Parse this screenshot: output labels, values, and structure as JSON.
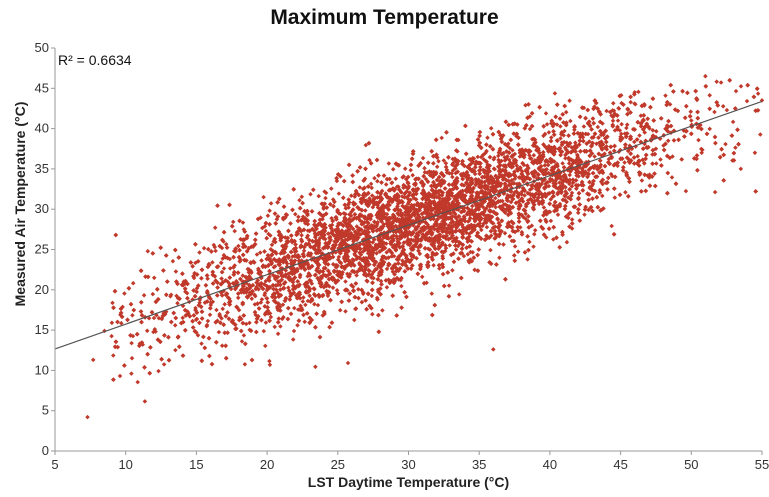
{
  "chart_data": {
    "type": "scatter",
    "title": "Maximum Temperature",
    "xlabel": "LST Daytime Temperature (°C)",
    "ylabel": "Measured Air Temperature (°C)",
    "xlim": [
      5,
      55
    ],
    "ylim": [
      0,
      50
    ],
    "xticks": [
      "5",
      "10",
      "15",
      "20",
      "25",
      "30",
      "35",
      "40",
      "45",
      "50",
      "55"
    ],
    "yticks": [
      "0",
      "5",
      "10",
      "15",
      "20",
      "25",
      "30",
      "35",
      "40",
      "45",
      "50"
    ],
    "grid": false,
    "annotation": "R² = 0.6634",
    "trendline": {
      "slope": 0.614,
      "intercept": 9.6,
      "color": "#555555"
    },
    "marker_color": "#c0392b",
    "points_sample": [
      [
        7.3,
        4.2
      ],
      [
        7.7,
        11.3
      ],
      [
        8.5,
        14.9
      ],
      [
        9.6,
        9.3
      ],
      [
        10.4,
        9.6
      ],
      [
        11.2,
        13.2
      ],
      [
        12.0,
        16.5
      ],
      [
        13.5,
        15.6
      ],
      [
        14.5,
        18.5
      ],
      [
        15.8,
        19.6
      ],
      [
        17.0,
        18.2
      ],
      [
        18.5,
        21.6
      ],
      [
        20.2,
        22.0
      ],
      [
        20.2,
        10.7
      ],
      [
        22.0,
        25.1
      ],
      [
        24.0,
        27.1
      ],
      [
        25.5,
        28.8
      ],
      [
        26.5,
        24.0
      ],
      [
        28.0,
        29.5
      ],
      [
        30.0,
        27.0
      ],
      [
        30.5,
        33.2
      ],
      [
        32.0,
        31.5
      ],
      [
        33.5,
        30.2
      ],
      [
        35.0,
        34.8
      ],
      [
        36.0,
        12.6
      ],
      [
        36.5,
        31.0
      ],
      [
        38.0,
        37.0
      ],
      [
        39.5,
        33.5
      ],
      [
        40.5,
        40.5
      ],
      [
        42.0,
        36.0
      ],
      [
        43.5,
        42.0
      ],
      [
        45.0,
        39.0
      ],
      [
        46.0,
        44.5
      ],
      [
        47.5,
        37.5
      ],
      [
        48.5,
        43.0
      ],
      [
        50.0,
        41.0
      ],
      [
        51.0,
        46.5
      ],
      [
        53.5,
        35.0
      ],
      [
        54.5,
        37.0
      ],
      [
        55.0,
        43.5
      ]
    ],
    "n_points": 9000
  }
}
